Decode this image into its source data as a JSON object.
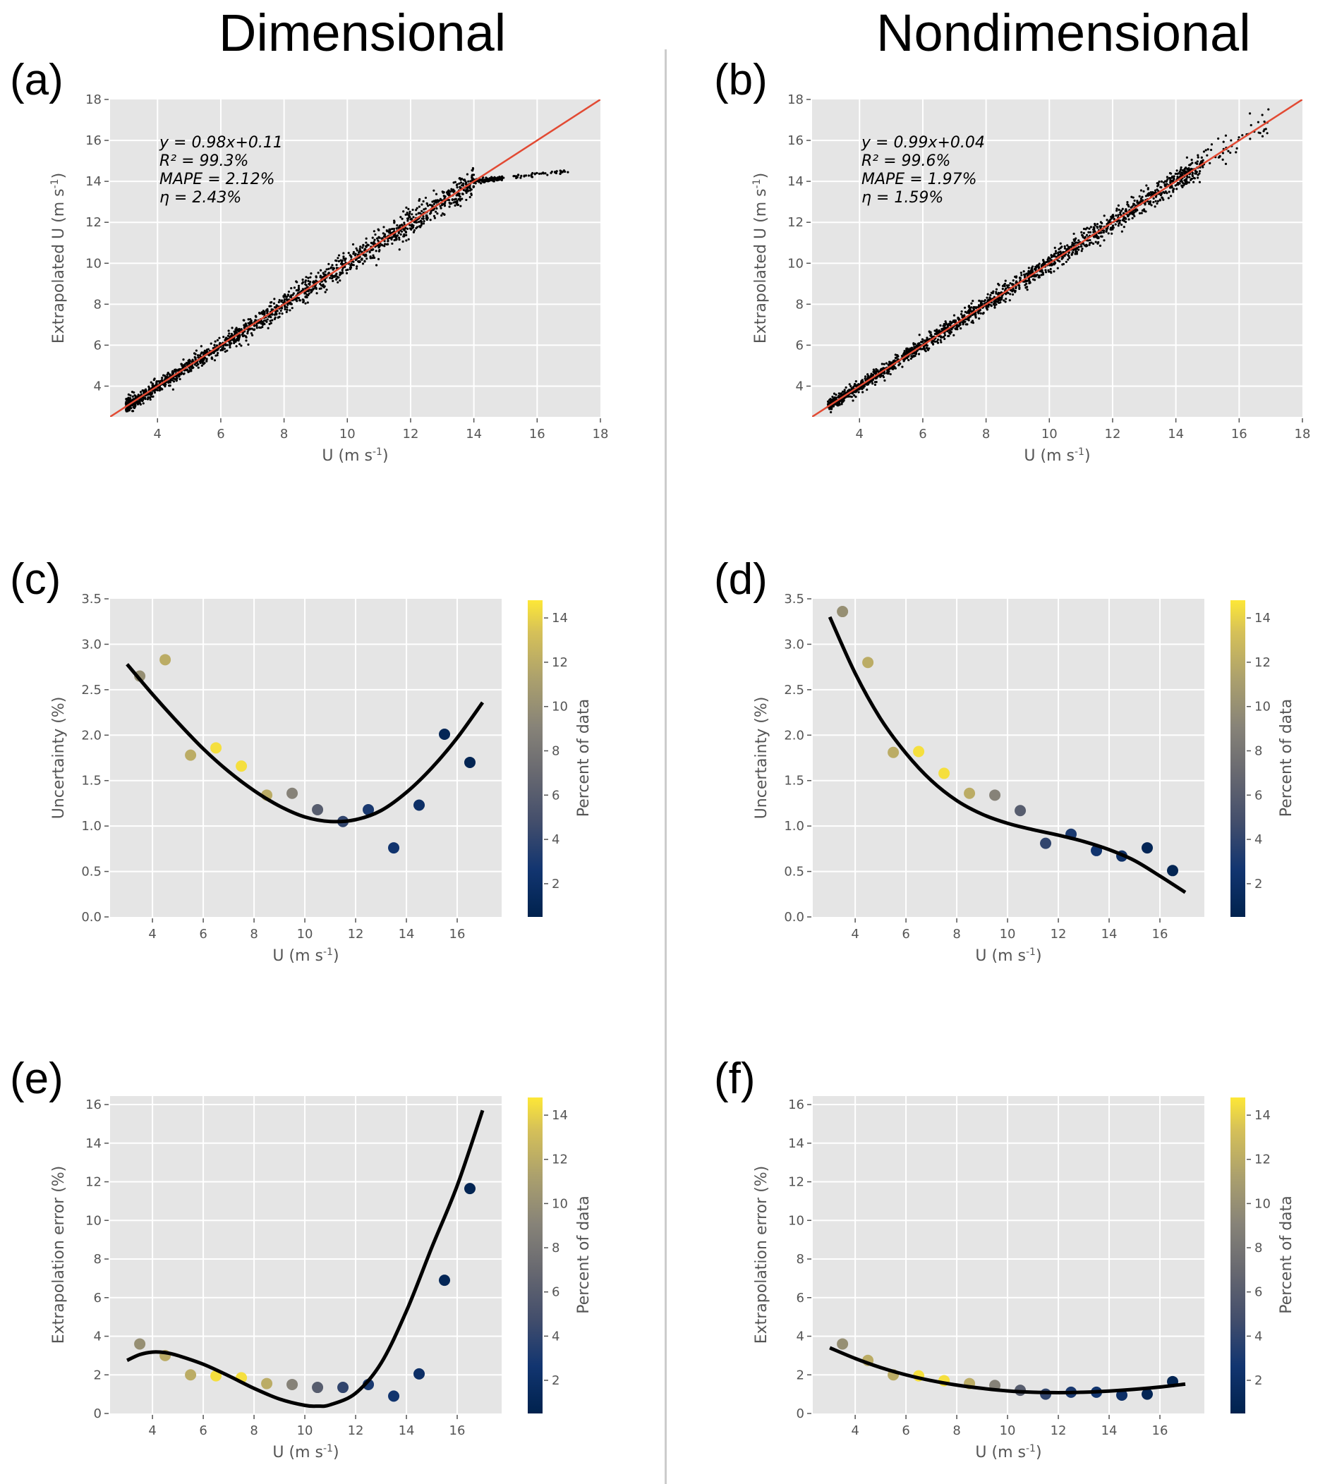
{
  "titles": {
    "left": "Dimensional",
    "right": "Nondimensional"
  },
  "panel_labels": [
    "(a)",
    "(b)",
    "(c)",
    "(d)",
    "(e)",
    "(f)"
  ],
  "colorbar": {
    "label": "Percent of data",
    "range": [
      0.5,
      14.8
    ],
    "ticks": [
      2,
      4,
      6,
      8,
      10,
      12,
      14
    ],
    "colormap": "cividis"
  },
  "chart_data": [
    {
      "id": "a",
      "type": "scatter",
      "title": "",
      "xlabel": "U (m s-1)",
      "ylabel": "Extrapolated U (m s-1)",
      "xlim": [
        2.5,
        18
      ],
      "ylim": [
        2.5,
        18
      ],
      "xticks": [
        4,
        6,
        8,
        10,
        12,
        14,
        16,
        18
      ],
      "yticks": [
        4,
        6,
        8,
        10,
        12,
        14,
        16,
        18
      ],
      "grid": true,
      "fit_line": {
        "slope": 1.0,
        "intercept": 0.0,
        "color": "#e24a33"
      },
      "annotations": [
        "y = 0.98x+0.11",
        "R² = 99.3%",
        "MAPE = 2.12%",
        "η = 2.43%"
      ],
      "scatter_description": "dense cloud of ~2000 points along y=x from U=3 to 14; above 14 predicted values saturate near 14–14.5",
      "scatter_model": {
        "x_range": [
          3,
          17
        ],
        "saturate_above": 14,
        "saturate_value": 14.5,
        "noise": 0.18
      }
    },
    {
      "id": "b",
      "type": "scatter",
      "title": "",
      "xlabel": "U (m s-1)",
      "ylabel": "Extrapolated U (m s-1)",
      "xlim": [
        2.5,
        18
      ],
      "ylim": [
        2.5,
        18
      ],
      "xticks": [
        4,
        6,
        8,
        10,
        12,
        14,
        16,
        18
      ],
      "yticks": [
        4,
        6,
        8,
        10,
        12,
        14,
        16,
        18
      ],
      "grid": true,
      "fit_line": {
        "slope": 1.0,
        "intercept": 0.0,
        "color": "#e24a33"
      },
      "annotations": [
        "y = 0.99x+0.04",
        "R² = 99.6%",
        "MAPE = 1.97%",
        "η = 1.59%"
      ],
      "scatter_description": "dense cloud of ~2000 points along y=x from U=3 to 17",
      "scatter_model": {
        "x_range": [
          3,
          17
        ],
        "saturate_above": null,
        "saturate_value": null,
        "noise": 0.15
      }
    },
    {
      "id": "c",
      "type": "scatter",
      "xlabel": "U (m s-1)",
      "ylabel": "Uncertainty (%)",
      "xlim": [
        2.33,
        17.75
      ],
      "ylim": [
        0,
        3.5
      ],
      "xticks": [
        4,
        6,
        8,
        10,
        12,
        14,
        16
      ],
      "yticks": [
        0.0,
        0.5,
        1.0,
        1.5,
        2.0,
        2.5,
        3.0,
        3.5
      ],
      "grid": true,
      "x": [
        3.5,
        4.5,
        5.5,
        6.5,
        7.5,
        8.5,
        9.5,
        10.5,
        11.5,
        12.5,
        13.5,
        14.5,
        15.5,
        16.5
      ],
      "y": [
        2.65,
        2.83,
        1.78,
        1.86,
        1.66,
        1.34,
        1.36,
        1.18,
        1.05,
        1.18,
        0.76,
        1.23,
        2.01,
        1.7
      ],
      "percent_of_data": [
        10,
        12,
        12,
        14.5,
        14.5,
        12,
        9,
        6,
        4,
        3,
        2.5,
        2,
        1,
        0.8
      ],
      "fit_curve": {
        "x": [
          3,
          4,
          5,
          6,
          7,
          8,
          9,
          10,
          11,
          12,
          13,
          14,
          15,
          16,
          17
        ],
        "y": [
          2.78,
          2.45,
          2.14,
          1.85,
          1.6,
          1.39,
          1.22,
          1.1,
          1.05,
          1.07,
          1.17,
          1.37,
          1.64,
          1.97,
          2.36
        ]
      }
    },
    {
      "id": "d",
      "type": "scatter",
      "xlabel": "U (m s-1)",
      "ylabel": "Uncertainty (%)",
      "xlim": [
        2.33,
        17.75
      ],
      "ylim": [
        0,
        3.5
      ],
      "xticks": [
        4,
        6,
        8,
        10,
        12,
        14,
        16
      ],
      "yticks": [
        0.0,
        0.5,
        1.0,
        1.5,
        2.0,
        2.5,
        3.0,
        3.5
      ],
      "grid": true,
      "x": [
        3.5,
        4.5,
        5.5,
        6.5,
        7.5,
        8.5,
        9.5,
        10.5,
        11.5,
        12.5,
        13.5,
        14.5,
        15.5,
        16.5
      ],
      "y": [
        3.36,
        2.8,
        1.81,
        1.82,
        1.58,
        1.36,
        1.34,
        1.17,
        0.81,
        0.91,
        0.73,
        0.67,
        0.76,
        0.51
      ],
      "percent_of_data": [
        10,
        12,
        12,
        14.5,
        14.5,
        12,
        9,
        6,
        4,
        3,
        2.5,
        2,
        1,
        0.8
      ],
      "fit_curve": {
        "x": [
          3,
          4,
          5,
          6,
          7,
          8,
          9,
          10,
          11,
          12,
          13,
          14,
          15,
          16,
          17
        ],
        "y": [
          3.3,
          2.68,
          2.18,
          1.8,
          1.5,
          1.28,
          1.13,
          1.03,
          0.96,
          0.9,
          0.83,
          0.74,
          0.62,
          0.45,
          0.27
        ]
      }
    },
    {
      "id": "e",
      "type": "scatter",
      "xlabel": "U (m s-1)",
      "ylabel": "Extrapolation error (%)",
      "xlim": [
        2.33,
        17.75
      ],
      "ylim": [
        0,
        16.44
      ],
      "xticks": [
        4,
        6,
        8,
        10,
        12,
        14,
        16
      ],
      "yticks": [
        0,
        2,
        4,
        6,
        8,
        10,
        12,
        14,
        16
      ],
      "grid": true,
      "x": [
        3.5,
        4.5,
        5.5,
        6.5,
        7.5,
        8.5,
        9.5,
        10.5,
        11.5,
        12.5,
        13.5,
        14.5,
        15.5,
        16.5
      ],
      "y": [
        3.6,
        3.0,
        2.0,
        1.95,
        1.85,
        1.55,
        1.5,
        1.35,
        1.35,
        1.5,
        0.9,
        2.05,
        6.9,
        11.65
      ],
      "percent_of_data": [
        10,
        12,
        12,
        14.5,
        14.5,
        12,
        9,
        6,
        4,
        3,
        2.5,
        2,
        1,
        0.8
      ],
      "fit_curve": {
        "x": [
          3,
          3.5,
          4,
          4.5,
          5,
          6,
          7,
          8,
          9,
          10,
          10.5,
          11,
          12,
          13,
          14,
          15,
          16,
          17
        ],
        "y": [
          2.75,
          3.05,
          3.18,
          3.15,
          3.0,
          2.55,
          1.95,
          1.3,
          0.75,
          0.42,
          0.38,
          0.45,
          1.05,
          2.6,
          5.3,
          8.6,
          11.8,
          15.7
        ]
      }
    },
    {
      "id": "f",
      "type": "scatter",
      "xlabel": "U (m s-1)",
      "ylabel": "Extrapolation error (%)",
      "xlim": [
        2.33,
        17.75
      ],
      "ylim": [
        0,
        16.44
      ],
      "xticks": [
        4,
        6,
        8,
        10,
        12,
        14,
        16
      ],
      "yticks": [
        0,
        2,
        4,
        6,
        8,
        10,
        12,
        14,
        16
      ],
      "grid": true,
      "x": [
        3.5,
        4.5,
        5.5,
        6.5,
        7.5,
        8.5,
        9.5,
        10.5,
        11.5,
        12.5,
        13.5,
        14.5,
        15.5,
        16.5
      ],
      "y": [
        3.6,
        2.75,
        2.0,
        1.95,
        1.7,
        1.55,
        1.45,
        1.2,
        1.0,
        1.1,
        1.1,
        0.95,
        1.0,
        1.65
      ],
      "percent_of_data": [
        10,
        12,
        12,
        14.5,
        14.5,
        12,
        9,
        6,
        4,
        3,
        2.5,
        2,
        1,
        0.8
      ],
      "fit_curve": {
        "x": [
          3,
          4,
          5,
          6,
          7,
          8,
          9,
          10,
          11,
          12,
          13,
          14,
          15,
          16,
          17
        ],
        "y": [
          3.4,
          2.85,
          2.38,
          2.0,
          1.7,
          1.47,
          1.3,
          1.17,
          1.1,
          1.08,
          1.1,
          1.16,
          1.25,
          1.37,
          1.52
        ]
      }
    }
  ]
}
